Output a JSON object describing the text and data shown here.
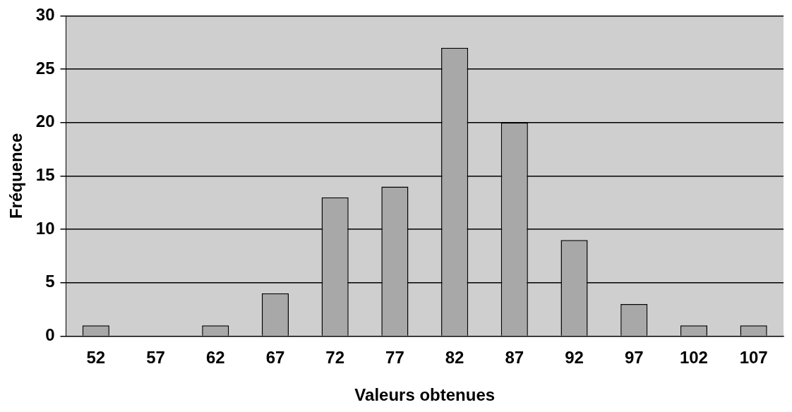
{
  "chart_data": {
    "type": "bar",
    "xlabel": "Valeurs obtenues",
    "ylabel": "Fréquence",
    "categories": [
      "52",
      "57",
      "62",
      "67",
      "72",
      "77",
      "82",
      "87",
      "92",
      "97",
      "102",
      "107"
    ],
    "values": [
      1,
      0,
      1,
      4,
      13,
      14,
      27,
      20,
      9,
      3,
      1,
      1
    ],
    "color": "#a8a8a8",
    "ylim": [
      0,
      30
    ],
    "yticks": [
      0,
      5,
      10,
      15,
      20,
      25,
      30
    ],
    "grid": "y",
    "legend": false
  }
}
